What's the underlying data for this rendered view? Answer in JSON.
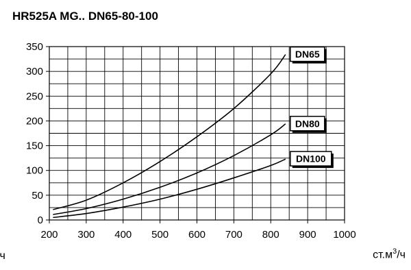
{
  "title": "HR525A MG..  DN65-80-100",
  "unit_left": "/ч",
  "unit_right": {
    "base": "ст.м",
    "sup": "3",
    "tail": "/ч"
  },
  "chart_data": {
    "type": "line",
    "title": "HR525A MG..  DN65-80-100",
    "xlabel": "ст.м3/ч",
    "ylabel": "",
    "xlim": [
      200,
      1000
    ],
    "ylim": [
      0,
      350
    ],
    "x_ticks": [
      200,
      300,
      400,
      500,
      600,
      700,
      800,
      900,
      1000
    ],
    "y_ticks": [
      0,
      50,
      100,
      150,
      200,
      250,
      300,
      350
    ],
    "x_minor_step": 50,
    "y_minor_step": 25,
    "grid": true,
    "legend": "labels at line ends",
    "series": [
      {
        "name": "DN65",
        "x": [
          210,
          300,
          400,
          500,
          600,
          700,
          800,
          840
        ],
        "y": [
          21,
          40,
          75,
          118,
          168,
          225,
          295,
          334
        ]
      },
      {
        "name": "DN80",
        "x": [
          210,
          300,
          400,
          500,
          600,
          700,
          800,
          840
        ],
        "y": [
          11,
          23,
          42,
          66,
          95,
          130,
          172,
          194
        ]
      },
      {
        "name": "DN100",
        "x": [
          210,
          300,
          400,
          500,
          600,
          700,
          800,
          840
        ],
        "y": [
          5,
          13,
          26,
          42,
          62,
          85,
          110,
          123
        ]
      }
    ]
  }
}
